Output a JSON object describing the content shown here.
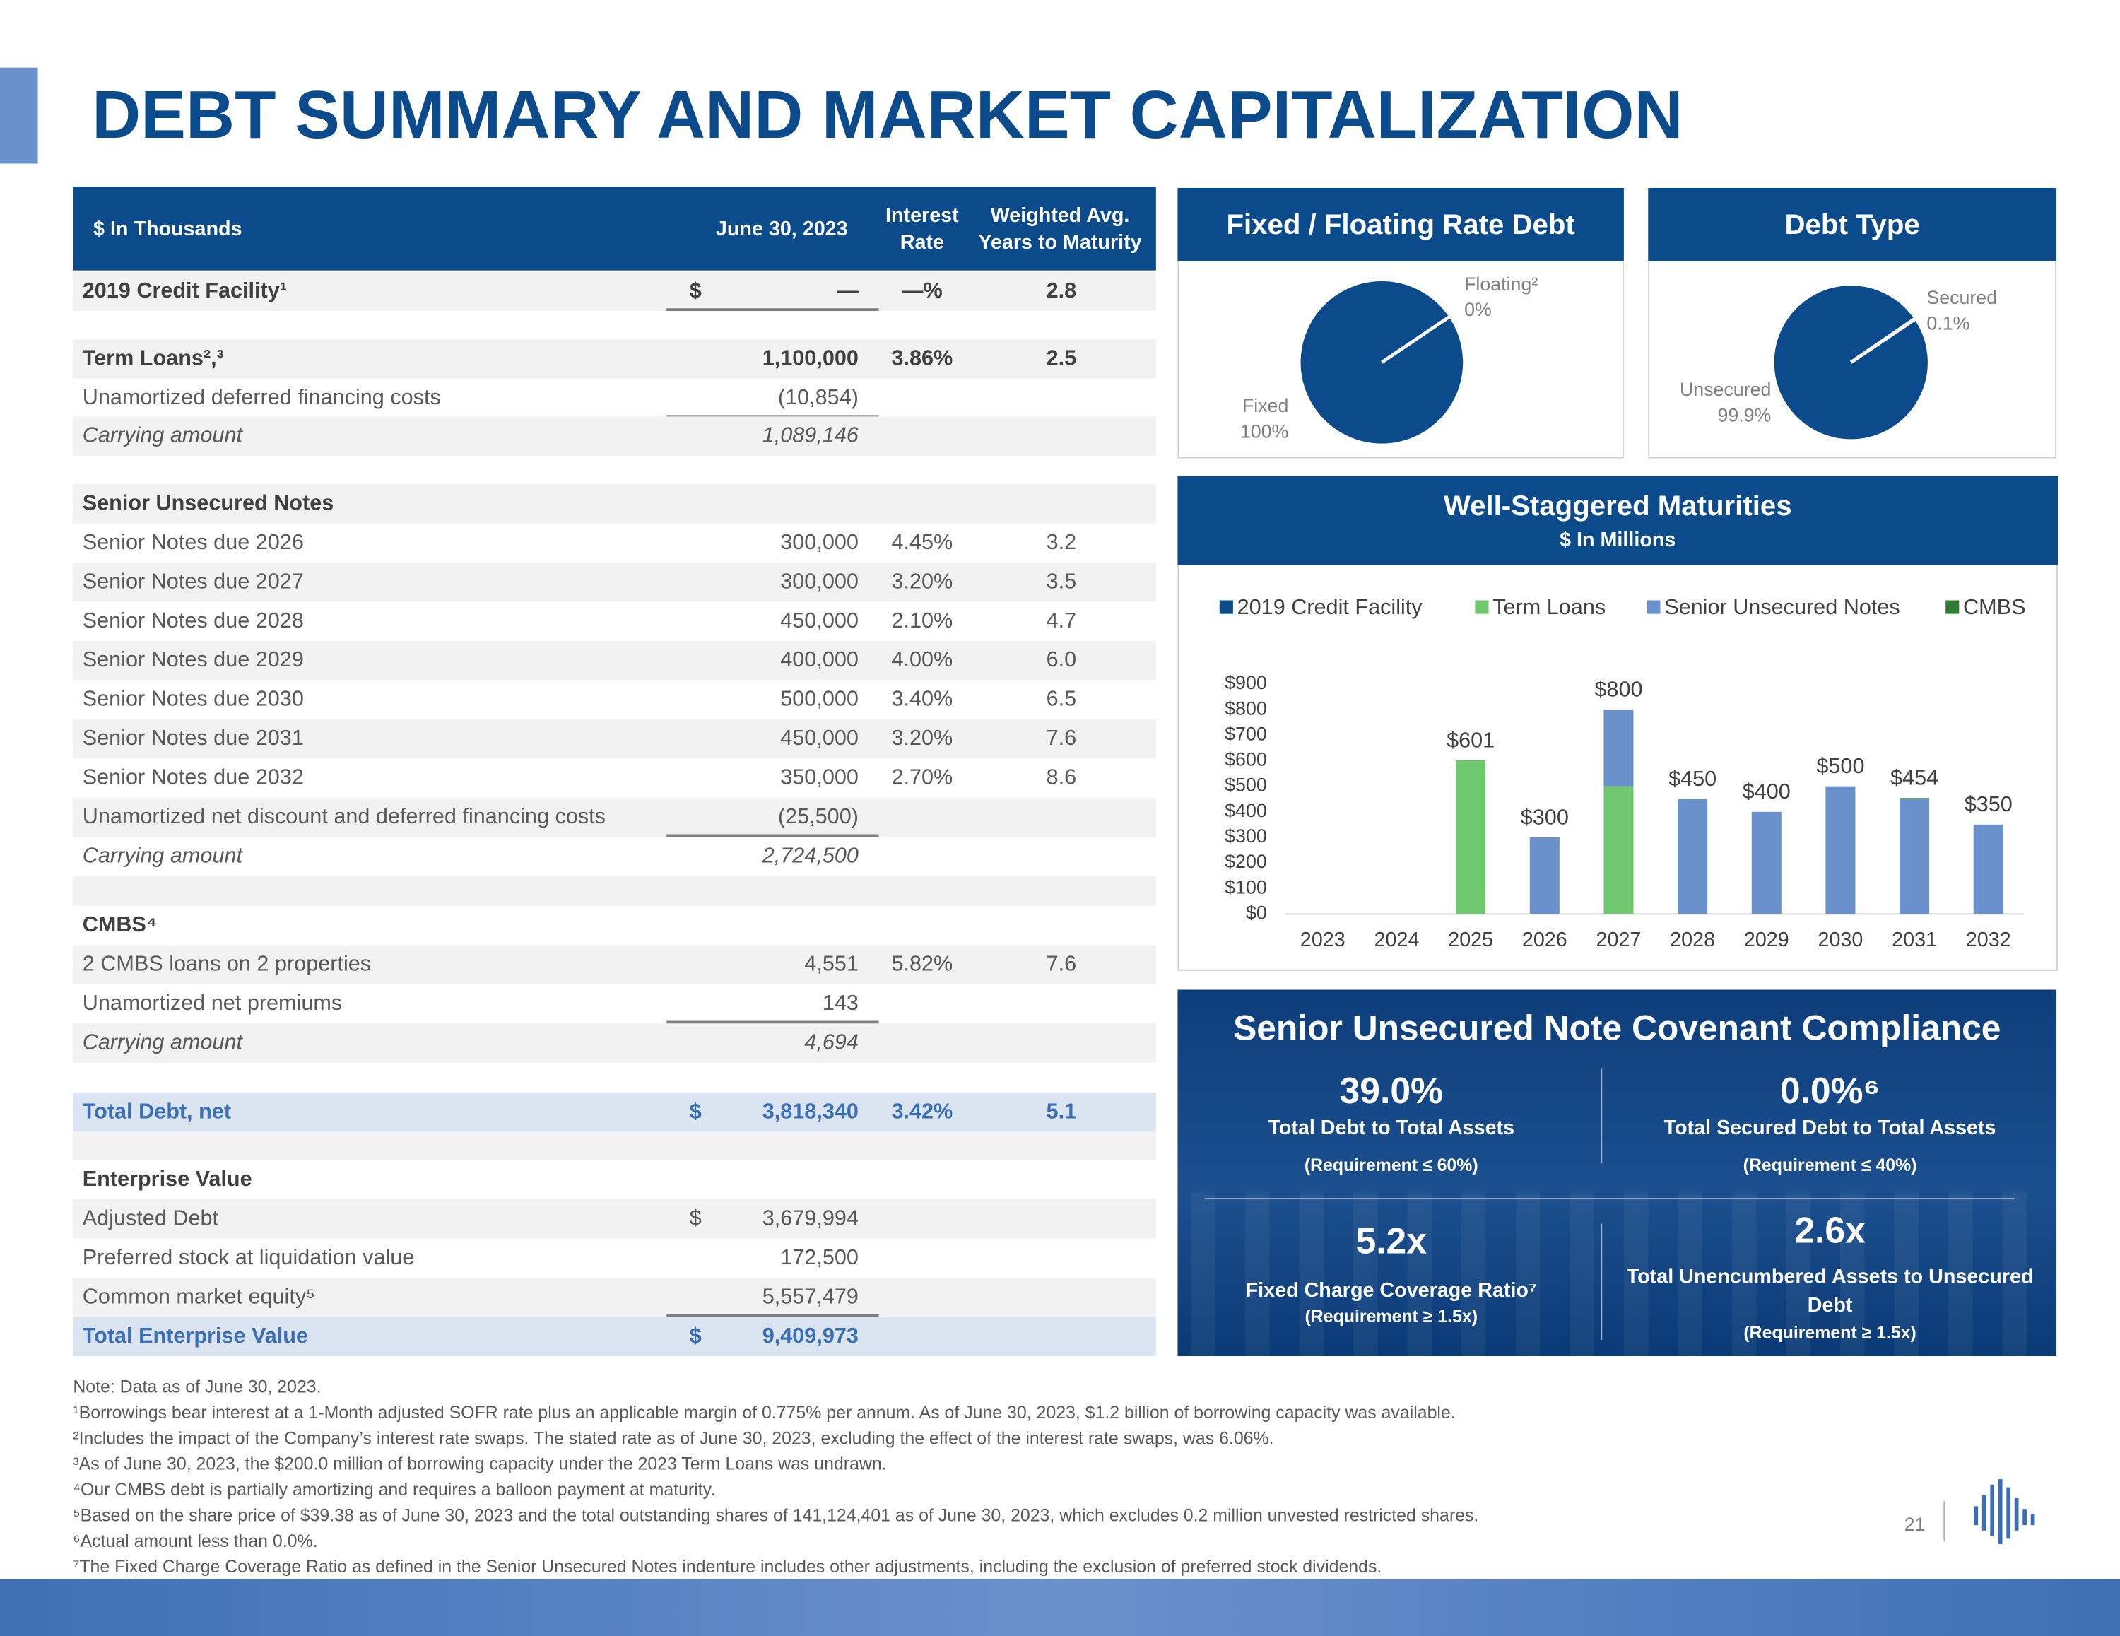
{
  "title": "DEBT SUMMARY AND MARKET CAPITALIZATION",
  "table": {
    "headers": [
      "$ In Thousands",
      "June 30, 2023",
      "Interest Rate",
      "Weighted Avg. Years to Maturity"
    ],
    "rows": [
      [
        "2019 Credit Facility¹",
        "$",
        "—",
        "—%",
        "2.8"
      ],
      [
        "Term Loans²,³",
        null,
        "1,100,000",
        "3.86%",
        "2.5"
      ],
      [
        "Unamortized deferred financing costs",
        null,
        "(10,854)",
        null,
        null
      ],
      [
        "Carrying amount",
        null,
        "1,089,146",
        null,
        null
      ],
      [
        "Senior Unsecured Notes",
        null,
        null,
        null,
        null
      ],
      [
        "Senior Notes due 2026",
        null,
        "300,000",
        "4.45%",
        "3.2"
      ],
      [
        "Senior Notes due 2027",
        null,
        "300,000",
        "3.20%",
        "3.5"
      ],
      [
        "Senior Notes due 2028",
        null,
        "450,000",
        "2.10%",
        "4.7"
      ],
      [
        "Senior Notes due 2029",
        null,
        "400,000",
        "4.00%",
        "6.0"
      ],
      [
        "Senior Notes due 2030",
        null,
        "500,000",
        "3.40%",
        "6.5"
      ],
      [
        "Senior Notes due 2031",
        null,
        "450,000",
        "3.20%",
        "7.6"
      ],
      [
        "Senior Notes due 2032",
        null,
        "350,000",
        "2.70%",
        "8.6"
      ],
      [
        "Unamortized net discount and deferred financing costs",
        null,
        "(25,500)",
        null,
        null
      ],
      [
        "Carrying amount",
        null,
        "2,724,500",
        null,
        null
      ],
      [
        "CMBS⁴",
        null,
        null,
        null,
        null
      ],
      [
        "2 CMBS loans on 2 properties",
        null,
        "4,551",
        "5.82%",
        "7.6"
      ],
      [
        "Unamortized net premiums",
        null,
        "143",
        null,
        null
      ],
      [
        "Carrying amount",
        null,
        "4,694",
        null,
        null
      ],
      [
        "Total Debt, net",
        "$",
        "3,818,340",
        "3.42%",
        "5.1"
      ],
      [
        "Enterprise Value",
        null,
        null,
        null,
        null
      ],
      [
        "Adjusted Debt",
        "$",
        "3,679,994",
        null,
        null
      ],
      [
        "Preferred stock at liquidation value",
        null,
        "172,500",
        null,
        null
      ],
      [
        "Common market equity⁵",
        null,
        "5,557,479",
        null,
        null
      ],
      [
        "Total Enterprise Value",
        "$",
        "9,409,973",
        null,
        null
      ]
    ]
  },
  "chart_data": [
    {
      "type": "pie",
      "title": "Fixed / Floating Rate Debt",
      "categories": [
        "Fixed",
        "Floating²"
      ],
      "values": [
        100,
        0
      ],
      "value_labels": [
        "100%",
        "0%"
      ],
      "color": "#0b4a8b"
    },
    {
      "type": "pie",
      "title": "Debt Type",
      "categories": [
        "Unsecured",
        "Secured"
      ],
      "values": [
        99.9,
        0.1
      ],
      "value_labels": [
        "99.9%",
        "0.1%"
      ],
      "color": "#0b4a8b"
    },
    {
      "type": "bar",
      "stacked": true,
      "title": "Well-Staggered Maturities",
      "subtitle": "$ In Millions",
      "categories": [
        "2023",
        "2024",
        "2025",
        "2026",
        "2027",
        "2028",
        "2029",
        "2030",
        "2031",
        "2032"
      ],
      "series": [
        {
          "name": "2019 Credit Facility",
          "color": "#0b4a8b",
          "values": [
            null,
            null,
            null,
            null,
            null,
            null,
            null,
            null,
            null,
            null
          ]
        },
        {
          "name": "Term Loans",
          "color": "#70c86e",
          "values": [
            null,
            null,
            600,
            null,
            500,
            null,
            null,
            null,
            null,
            null
          ]
        },
        {
          "name": "Senior Unsecured Notes",
          "color": "#6a91cc",
          "values": [
            null,
            null,
            null,
            300,
            300,
            450,
            400,
            500,
            450,
            350
          ]
        },
        {
          "name": "CMBS",
          "color": "#2e7d32",
          "values": [
            null,
            null,
            1,
            null,
            null,
            null,
            null,
            null,
            4,
            null
          ]
        }
      ],
      "total_labels": [
        null,
        null,
        "$601",
        "$300",
        "$800",
        "$450",
        "$400",
        "$500",
        "$454",
        "$350"
      ],
      "ylim": [
        0,
        900
      ],
      "yticks": [
        {
          "value": 0,
          "label": "$0"
        },
        {
          "value": 100,
          "label": "$100"
        },
        {
          "value": 200,
          "label": "$200"
        },
        {
          "value": 300,
          "label": "$300"
        },
        {
          "value": 400,
          "label": "$400"
        },
        {
          "value": 500,
          "label": "$500"
        },
        {
          "value": 600,
          "label": "$600"
        },
        {
          "value": 700,
          "label": "$700"
        },
        {
          "value": 800,
          "label": "$800"
        },
        {
          "value": 900,
          "label": "$900"
        }
      ],
      "legend": "top"
    }
  ],
  "covenants": {
    "title": "Senior Unsecured Note Covenant Compliance",
    "items": [
      {
        "value": "39.0%",
        "label": "Total Debt to Total Assets",
        "requirement": "(Requirement ≤ 60%)"
      },
      {
        "value": "0.0%⁶",
        "label": "Total Secured Debt to Total Assets",
        "requirement": "(Requirement ≤ 40%)"
      },
      {
        "value": "5.2x",
        "label": "Fixed Charge Coverage Ratio⁷",
        "requirement": "(Requirement ≥ 1.5x)"
      },
      {
        "value": "2.6x",
        "label": "Total Unencumbered Assets to Unsecured Debt",
        "requirement": "(Requirement ≥ 1.5x)"
      }
    ]
  },
  "footnotes": [
    "Note: Data as of June 30, 2023.",
    "¹Borrowings bear interest at a 1-Month adjusted SOFR rate plus an applicable margin of 0.775% per annum. As of June 30, 2023, $1.2 billion of borrowing capacity was available.",
    "²Includes the impact of the Company’s interest rate swaps. The stated rate as of June 30, 2023, excluding the effect of the interest rate swaps, was 6.06%.",
    "³As of June 30, 2023, the $200.0 million of borrowing capacity under the 2023 Term Loans was undrawn.",
    "⁴Our CMBS debt is partially amortizing and requires a balloon payment at maturity.",
    "⁵Based on the share price of $39.38 as of June 30, 2023 and the total outstanding shares of 141,124,401 as of June 30, 2023, which excludes 0.2 million unvested restricted shares.",
    "⁶Actual amount less than 0.0%.",
    "⁷The Fixed Charge Coverage Ratio as defined in the Senior Unsecured Notes indenture includes other adjustments, including the exclusion of preferred stock dividends."
  ],
  "page_number": "21"
}
